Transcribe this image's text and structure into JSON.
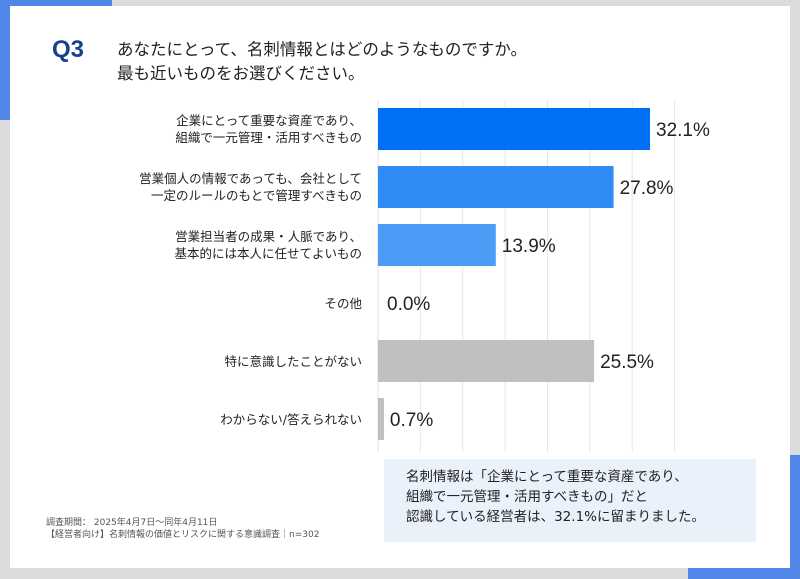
{
  "question": {
    "number": "Q3",
    "lines": [
      "あなたにとって、名刺情報とはどのようなものですか。",
      "最も近いものをお選びください。"
    ]
  },
  "chart_data": {
    "type": "bar",
    "orientation": "horizontal",
    "categories": [
      [
        "企業にとって重要な資産であり、",
        "組織で一元管理・活用すべきもの"
      ],
      [
        "営業個人の情報であっても、会社として",
        "一定のルールのもとで管理すべきもの"
      ],
      [
        "営業担当者の成果・人脈であり、",
        "基本的には本人に任せてよいもの"
      ],
      [
        "その他"
      ],
      [
        "特に意識したことがない"
      ],
      [
        "わからない/答えられない"
      ]
    ],
    "values": [
      32.1,
      27.8,
      13.9,
      0.0,
      25.5,
      0.7
    ],
    "data_labels": [
      "32.1%",
      "27.8%",
      "13.9%",
      "0.0%",
      "25.5%",
      "0.7%"
    ],
    "colors": [
      "#0071f5",
      "#2f8bf6",
      "#4b9bf7",
      "#4b9bf7",
      "#c0c0c0",
      "#c0c0c0"
    ],
    "xlim": [
      0,
      35
    ],
    "grid": true,
    "grid_step": 5
  },
  "note": {
    "lines": [
      "名刺情報は「企業にとって重要な資産であり、",
      "組織で一元管理・活用すべきもの」だと",
      "認識している経営者は、32.1%に留まりました。"
    ]
  },
  "source": {
    "lines": [
      "調査期間： 2025年4月7日～同年4月11日",
      "【経営者向け】名刺情報の価値とリスクに関する意識調査｜n=302"
    ]
  },
  "accent_color": "#4f86e8"
}
